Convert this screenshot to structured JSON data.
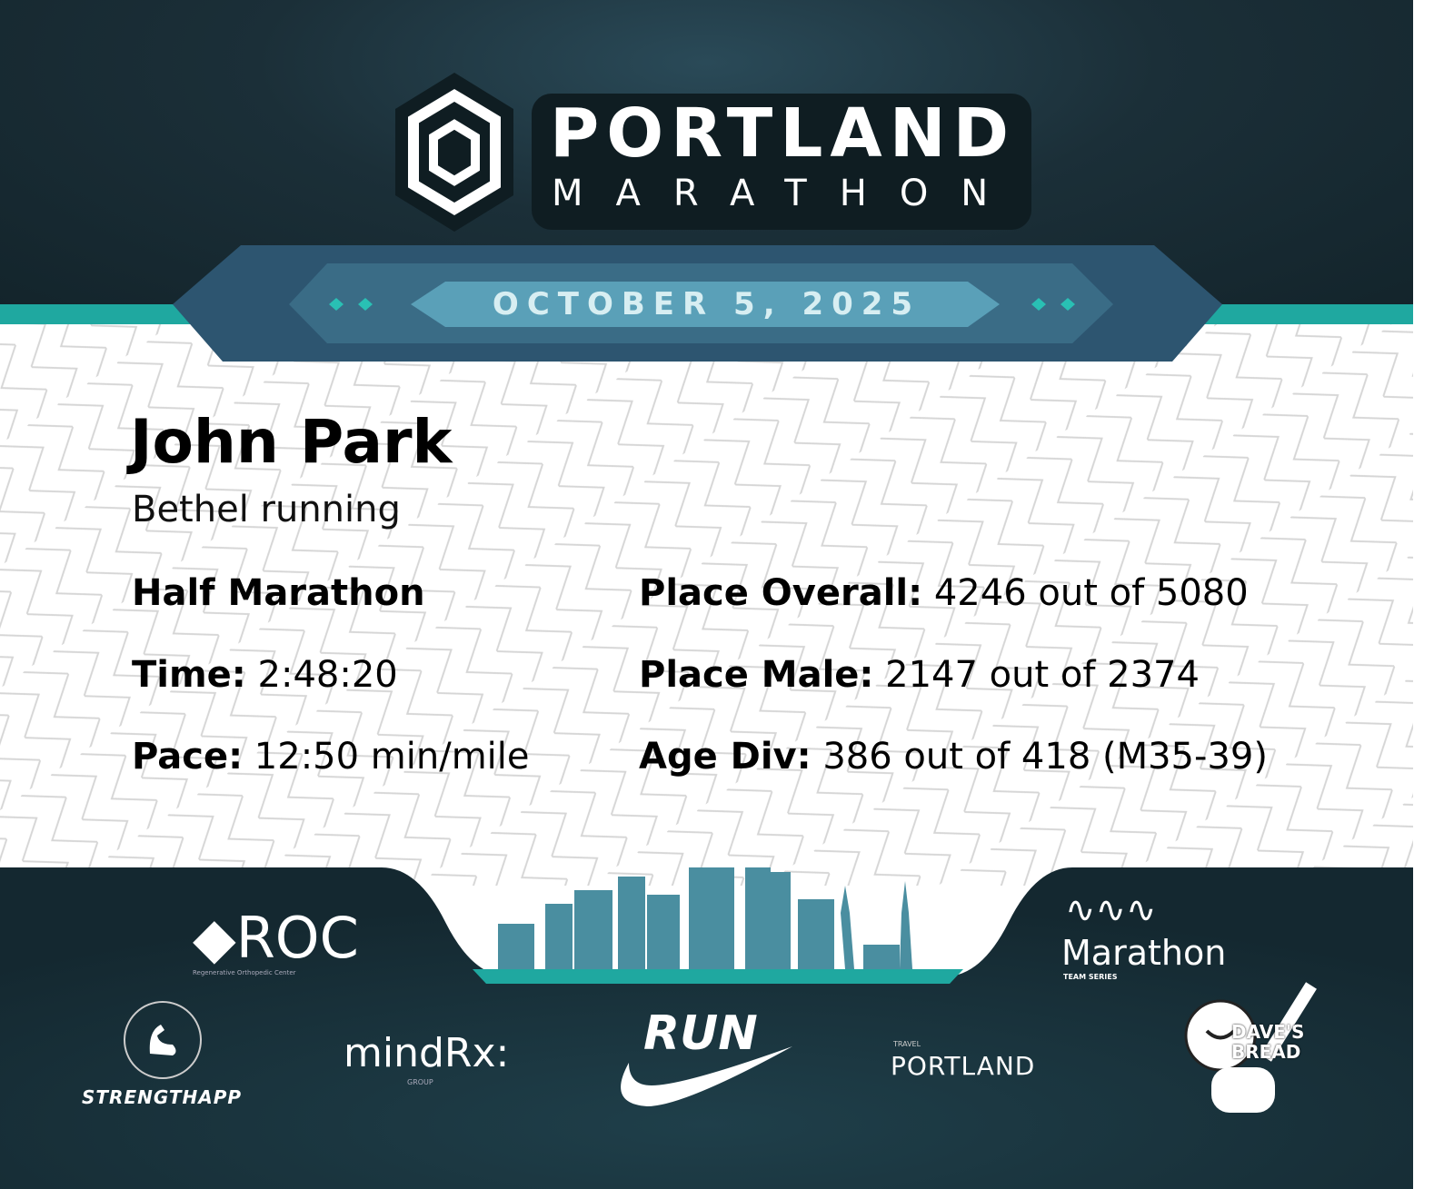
{
  "event": {
    "logo_title": "PORTLAND",
    "logo_subtitle": "MARATHON",
    "date": "OCTOBER 5, 2025"
  },
  "runner": {
    "name": "John Park",
    "team": "Bethel running"
  },
  "results": {
    "race": "Half Marathon",
    "time_label": "Time:",
    "time": "2:48:20",
    "pace_label": "Pace:",
    "pace": "12:50 min/mile",
    "overall_label": "Place Overall:",
    "overall": "4246 out of 5080",
    "male_label": "Place Male:",
    "male": "2147 out of 2374",
    "age_label": "Age Div:",
    "age": "386 out of 418 (M35-39)"
  },
  "sponsors": {
    "roc": "ROC",
    "roc_sub": "Regenerative Orthopedic Center",
    "strengthapp": "STRENGTHAPP",
    "mindrx": "mindRx:",
    "mindrx_sub": "GROUP",
    "run": "RUN",
    "travel": "TRAVEL",
    "portland": "PORTLAND",
    "marathon": "Marathon",
    "marathon_sub": "TEAM SERIES",
    "daves": "DAVE'S",
    "bread": "BREAD"
  },
  "colors": {
    "dark": "#1b2f38",
    "teal": "#1fa8a0",
    "banner": "#2d5570",
    "skyline": "#4a8ea0"
  }
}
